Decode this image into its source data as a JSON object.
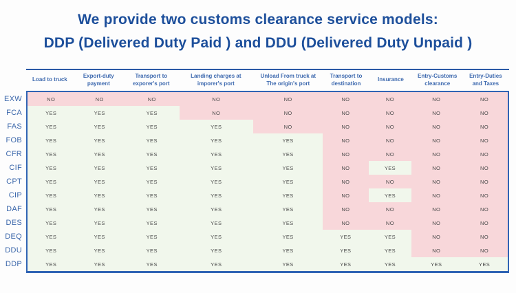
{
  "title": {
    "line1": "We provide two customs clearance service models:",
    "line2": "DDP (Delivered Duty Paid ) and DDU (Delivered Duty Unpaid )"
  },
  "table": {
    "columns": [
      "Load to truck",
      "Export-duty payment",
      "Transport to exporer's port",
      "Landing charges at imporer's port",
      "Unload From truck at The origin's port",
      "Transport to destination",
      "Insurance",
      "Entry-Customs clearance",
      "Entry-Duties and Taxes"
    ],
    "rows": [
      {
        "term": "EXW",
        "values": [
          "NO",
          "NO",
          "NO",
          "NO",
          "NO",
          "NO",
          "NO",
          "NO",
          "NO"
        ]
      },
      {
        "term": "FCA",
        "values": [
          "YES",
          "YES",
          "YES",
          "NO",
          "NO",
          "NO",
          "NO",
          "NO",
          "NO"
        ]
      },
      {
        "term": "FAS",
        "values": [
          "YES",
          "YES",
          "YES",
          "YES",
          "NO",
          "NO",
          "NO",
          "NO",
          "NO"
        ]
      },
      {
        "term": "FOB",
        "values": [
          "YES",
          "YES",
          "YES",
          "YES",
          "YES",
          "NO",
          "NO",
          "NO",
          "NO"
        ]
      },
      {
        "term": "CFR",
        "values": [
          "YES",
          "YES",
          "YES",
          "YES",
          "YES",
          "NO",
          "NO",
          "NO",
          "NO"
        ]
      },
      {
        "term": "CIF",
        "values": [
          "YES",
          "YES",
          "YES",
          "YES",
          "YES",
          "NO",
          "YES",
          "NO",
          "NO"
        ]
      },
      {
        "term": "CPT",
        "values": [
          "YES",
          "YES",
          "YES",
          "YES",
          "YES",
          "NO",
          "NO",
          "NO",
          "NO"
        ]
      },
      {
        "term": "CIP",
        "values": [
          "YES",
          "YES",
          "YES",
          "YES",
          "YES",
          "NO",
          "YES",
          "NO",
          "NO"
        ]
      },
      {
        "term": "DAF",
        "values": [
          "YES",
          "YES",
          "YES",
          "YES",
          "YES",
          "NO",
          "NO",
          "NO",
          "NO"
        ]
      },
      {
        "term": "DES",
        "values": [
          "YES",
          "YES",
          "YES",
          "YES",
          "YES",
          "NO",
          "NO",
          "NO",
          "NO"
        ]
      },
      {
        "term": "DEQ",
        "values": [
          "YES",
          "YES",
          "YES",
          "YES",
          "YES",
          "YES",
          "YES",
          "NO",
          "NO"
        ]
      },
      {
        "term": "DDU",
        "values": [
          "YES",
          "YES",
          "YES",
          "YES",
          "YES",
          "YES",
          "YES",
          "NO",
          "NO"
        ]
      },
      {
        "term": "DDP",
        "values": [
          "YES",
          "YES",
          "YES",
          "YES",
          "YES",
          "YES",
          "YES",
          "YES",
          "YES"
        ]
      }
    ]
  },
  "colors": {
    "yes_cell_bg": "#f1f7ec",
    "no_cell_bg": "#f8d7da",
    "title_text": "#1d4f9b",
    "header_text": "#3c68ae",
    "row_label_text": "#3a66aa",
    "table_border": "#3064b4"
  },
  "chart_data": {
    "type": "table",
    "title": "We provide two customs clearance service models: DDP (Delivered Duty Paid) and DDU (Delivered Duty Unpaid)",
    "columns": [
      "Load to truck",
      "Export-duty payment",
      "Transport to exporer's port",
      "Landing charges at imporer's port",
      "Unload From truck at The origin's port",
      "Transport to destination",
      "Insurance",
      "Entry-Customs clearance",
      "Entry-Duties and Taxes"
    ],
    "row_labels": [
      "EXW",
      "FCA",
      "FAS",
      "FOB",
      "CFR",
      "CIF",
      "CPT",
      "CIP",
      "DAF",
      "DES",
      "DEQ",
      "DDU",
      "DDP"
    ],
    "values": [
      [
        "NO",
        "NO",
        "NO",
        "NO",
        "NO",
        "NO",
        "NO",
        "NO",
        "NO"
      ],
      [
        "YES",
        "YES",
        "YES",
        "NO",
        "NO",
        "NO",
        "NO",
        "NO",
        "NO"
      ],
      [
        "YES",
        "YES",
        "YES",
        "YES",
        "NO",
        "NO",
        "NO",
        "NO",
        "NO"
      ],
      [
        "YES",
        "YES",
        "YES",
        "YES",
        "YES",
        "NO",
        "NO",
        "NO",
        "NO"
      ],
      [
        "YES",
        "YES",
        "YES",
        "YES",
        "YES",
        "NO",
        "NO",
        "NO",
        "NO"
      ],
      [
        "YES",
        "YES",
        "YES",
        "YES",
        "YES",
        "NO",
        "YES",
        "NO",
        "NO"
      ],
      [
        "YES",
        "YES",
        "YES",
        "YES",
        "YES",
        "NO",
        "NO",
        "NO",
        "NO"
      ],
      [
        "YES",
        "YES",
        "YES",
        "YES",
        "YES",
        "NO",
        "YES",
        "NO",
        "NO"
      ],
      [
        "YES",
        "YES",
        "YES",
        "YES",
        "YES",
        "NO",
        "NO",
        "NO",
        "NO"
      ],
      [
        "YES",
        "YES",
        "YES",
        "YES",
        "YES",
        "NO",
        "NO",
        "NO",
        "NO"
      ],
      [
        "YES",
        "YES",
        "YES",
        "YES",
        "YES",
        "YES",
        "YES",
        "NO",
        "NO"
      ],
      [
        "YES",
        "YES",
        "YES",
        "YES",
        "YES",
        "YES",
        "YES",
        "NO",
        "NO"
      ],
      [
        "YES",
        "YES",
        "YES",
        "YES",
        "YES",
        "YES",
        "YES",
        "YES",
        "YES"
      ]
    ],
    "cell_color_coding": {
      "YES": "#f1f7ec",
      "NO": "#f8d7da"
    },
    "legend_position": "none",
    "grid": false
  }
}
